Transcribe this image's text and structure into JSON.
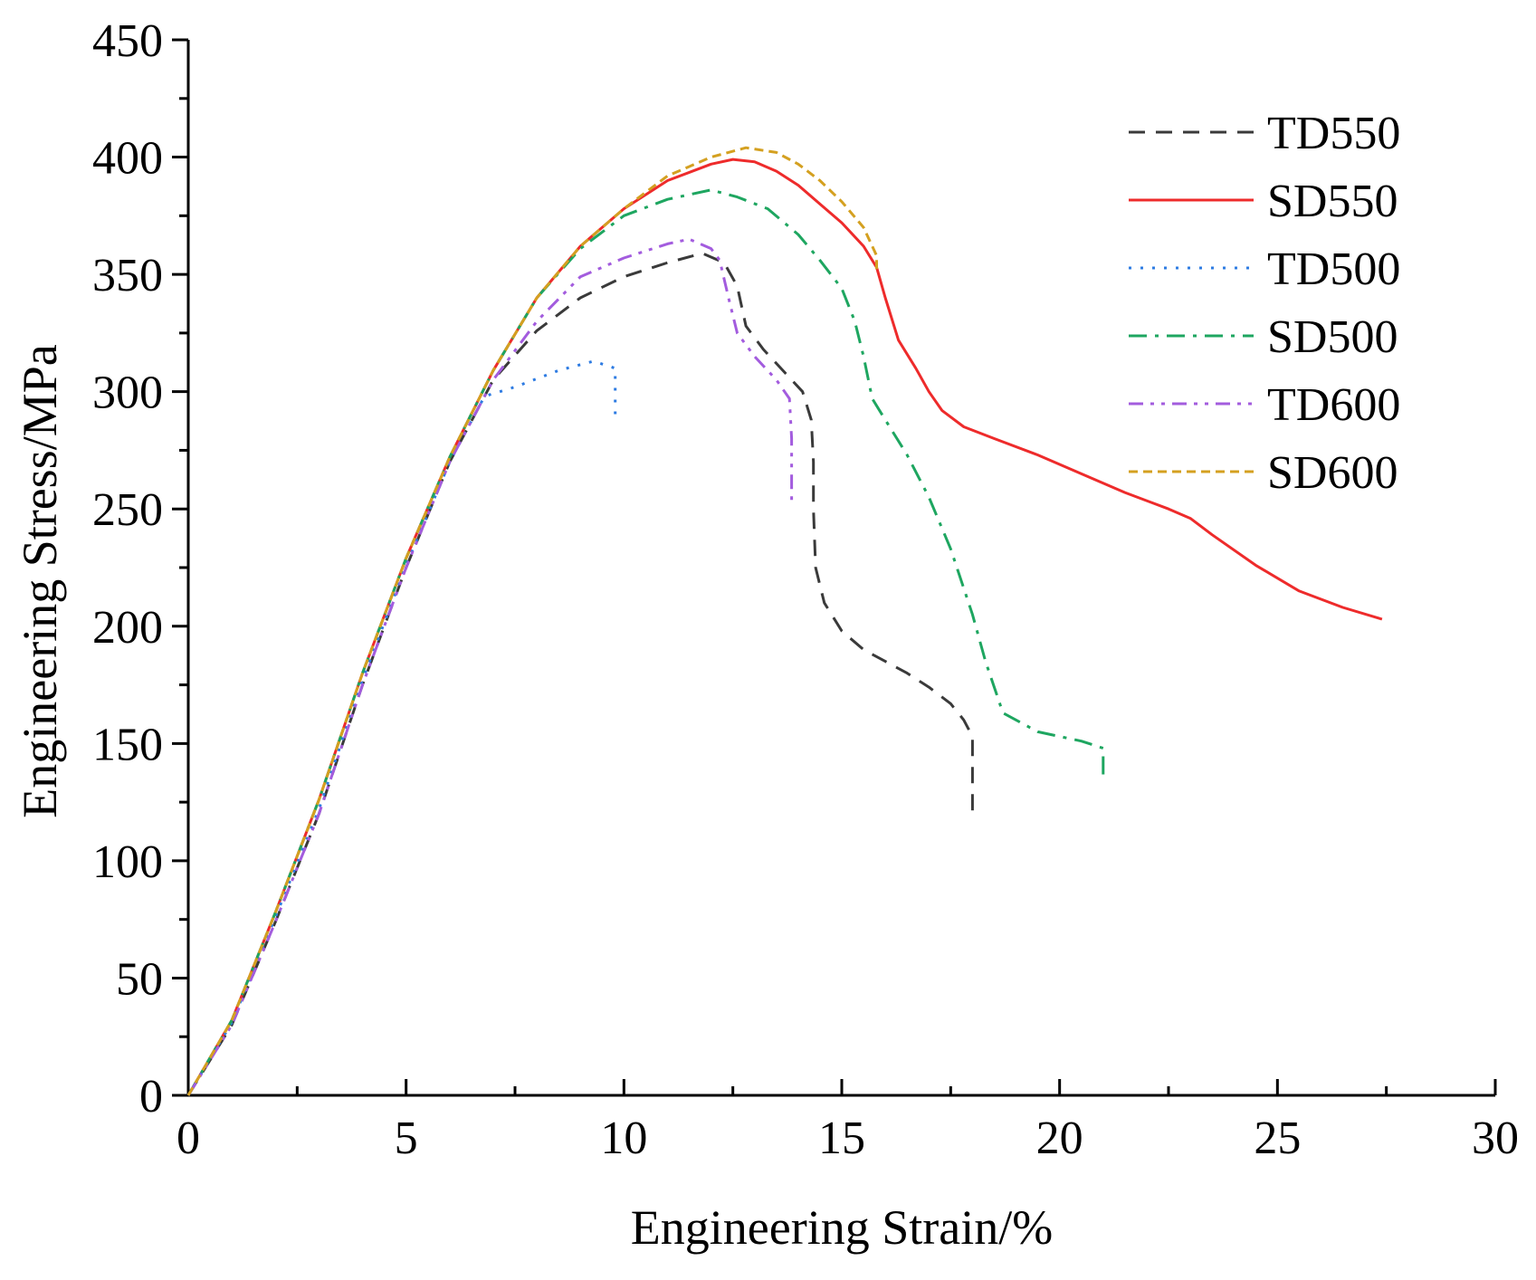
{
  "chart_data": {
    "type": "line",
    "title": "",
    "xlabel": "Engineering Strain/%",
    "ylabel": "Engineering Stress/MPa",
    "xlim": [
      0,
      30
    ],
    "ylim": [
      0,
      450
    ],
    "xticks": [
      0,
      5,
      10,
      15,
      20,
      25,
      30
    ],
    "yticks": [
      0,
      50,
      100,
      150,
      200,
      250,
      300,
      350,
      400,
      450
    ],
    "grid": false,
    "legend_position": "top-right",
    "series": [
      {
        "name": "TD550",
        "color": "#3a3a3a",
        "style": "dash",
        "points": [
          [
            0,
            0
          ],
          [
            1,
            30
          ],
          [
            2,
            74
          ],
          [
            3,
            120
          ],
          [
            4,
            175
          ],
          [
            5,
            225
          ],
          [
            6,
            270
          ],
          [
            7,
            305
          ],
          [
            8,
            326
          ],
          [
            9,
            340
          ],
          [
            10,
            349
          ],
          [
            11,
            355
          ],
          [
            11.8,
            359
          ],
          [
            12.3,
            355
          ],
          [
            12.6,
            345
          ],
          [
            12.8,
            328
          ],
          [
            13.2,
            318
          ],
          [
            13.7,
            308
          ],
          [
            14.1,
            300
          ],
          [
            14.3,
            288
          ],
          [
            14.35,
            270
          ],
          [
            14.35,
            250
          ],
          [
            14.4,
            225
          ],
          [
            14.6,
            210
          ],
          [
            15,
            198
          ],
          [
            15.5,
            190
          ],
          [
            16,
            185
          ],
          [
            16.5,
            180
          ],
          [
            17,
            174
          ],
          [
            17.5,
            167
          ],
          [
            17.8,
            160
          ],
          [
            18,
            153
          ],
          [
            18,
            140
          ],
          [
            18,
            130
          ],
          [
            18,
            120
          ]
        ]
      },
      {
        "name": "SD550",
        "color": "#ee2b2b",
        "style": "solid",
        "points": [
          [
            0,
            0
          ],
          [
            1,
            32
          ],
          [
            2,
            78
          ],
          [
            3,
            126
          ],
          [
            4,
            180
          ],
          [
            5,
            229
          ],
          [
            6,
            272
          ],
          [
            7,
            309
          ],
          [
            8,
            340
          ],
          [
            9,
            362
          ],
          [
            10,
            378
          ],
          [
            11,
            390
          ],
          [
            12,
            397
          ],
          [
            12.5,
            399
          ],
          [
            13,
            398
          ],
          [
            13.5,
            394
          ],
          [
            14,
            388
          ],
          [
            14.5,
            380
          ],
          [
            15,
            372
          ],
          [
            15.5,
            362
          ],
          [
            15.8,
            353
          ],
          [
            16,
            340
          ],
          [
            16.3,
            322
          ],
          [
            16.7,
            310
          ],
          [
            17,
            300
          ],
          [
            17.3,
            292
          ],
          [
            17.8,
            285
          ],
          [
            18.5,
            280
          ],
          [
            19.5,
            273
          ],
          [
            20.5,
            265
          ],
          [
            21.5,
            257
          ],
          [
            22.5,
            250
          ],
          [
            23,
            246
          ],
          [
            23.5,
            239
          ],
          [
            24.5,
            226
          ],
          [
            25.5,
            215
          ],
          [
            26.5,
            208
          ],
          [
            27.4,
            203
          ]
        ]
      },
      {
        "name": "TD500",
        "color": "#2d7be2",
        "style": "dot",
        "points": [
          [
            0,
            0
          ],
          [
            1,
            31
          ],
          [
            2,
            76
          ],
          [
            3,
            122
          ],
          [
            4,
            177
          ],
          [
            5,
            226
          ],
          [
            6,
            270
          ],
          [
            6.8,
            298
          ],
          [
            7.5,
            302
          ],
          [
            8.5,
            309
          ],
          [
            9.3,
            313
          ],
          [
            9.8,
            310
          ],
          [
            9.8,
            300
          ],
          [
            9.8,
            288
          ]
        ]
      },
      {
        "name": "SD500",
        "color": "#1ea660",
        "style": "dashdot",
        "points": [
          [
            0,
            0
          ],
          [
            1,
            32
          ],
          [
            2,
            78
          ],
          [
            3,
            126
          ],
          [
            4,
            180
          ],
          [
            5,
            229
          ],
          [
            6,
            272
          ],
          [
            7,
            309
          ],
          [
            8,
            340
          ],
          [
            9,
            361
          ],
          [
            10,
            375
          ],
          [
            11,
            382
          ],
          [
            12,
            386
          ],
          [
            12.6,
            383
          ],
          [
            13.3,
            378
          ],
          [
            14,
            367
          ],
          [
            14.5,
            356
          ],
          [
            15,
            344
          ],
          [
            15.3,
            330
          ],
          [
            15.5,
            315
          ],
          [
            15.7,
            297
          ],
          [
            16,
            288
          ],
          [
            16.5,
            273
          ],
          [
            17,
            255
          ],
          [
            17.5,
            233
          ],
          [
            18,
            205
          ],
          [
            18.3,
            185
          ],
          [
            18.7,
            163
          ],
          [
            19.5,
            155
          ],
          [
            20.5,
            151
          ],
          [
            21,
            148
          ],
          [
            21,
            142
          ],
          [
            21,
            135
          ]
        ]
      },
      {
        "name": "TD600",
        "color": "#a35cde",
        "style": "dashdotdot",
        "points": [
          [
            0,
            0
          ],
          [
            1,
            30
          ],
          [
            2,
            74
          ],
          [
            3,
            120
          ],
          [
            4,
            175
          ],
          [
            5,
            225
          ],
          [
            6,
            270
          ],
          [
            7,
            305
          ],
          [
            8,
            330
          ],
          [
            9,
            349
          ],
          [
            10,
            357
          ],
          [
            11,
            363
          ],
          [
            11.5,
            365
          ],
          [
            12,
            361
          ],
          [
            12.2,
            356
          ],
          [
            12.4,
            340
          ],
          [
            12.6,
            325
          ],
          [
            13,
            315
          ],
          [
            13.5,
            305
          ],
          [
            13.8,
            297
          ],
          [
            13.85,
            280
          ],
          [
            13.85,
            265
          ],
          [
            13.85,
            251
          ]
        ]
      },
      {
        "name": "SD600",
        "color": "#d4a020",
        "style": "shortdash",
        "points": [
          [
            0,
            0
          ],
          [
            1,
            32
          ],
          [
            2,
            78
          ],
          [
            3,
            126
          ],
          [
            4,
            180
          ],
          [
            5,
            229
          ],
          [
            6,
            272
          ],
          [
            7,
            309
          ],
          [
            8,
            340
          ],
          [
            9,
            362
          ],
          [
            10,
            378
          ],
          [
            11,
            392
          ],
          [
            12,
            400
          ],
          [
            12.8,
            404
          ],
          [
            13.5,
            402
          ],
          [
            14,
            397
          ],
          [
            14.5,
            390
          ],
          [
            15,
            381
          ],
          [
            15.5,
            370
          ],
          [
            15.8,
            358
          ],
          [
            15.8,
            352
          ]
        ]
      }
    ]
  }
}
